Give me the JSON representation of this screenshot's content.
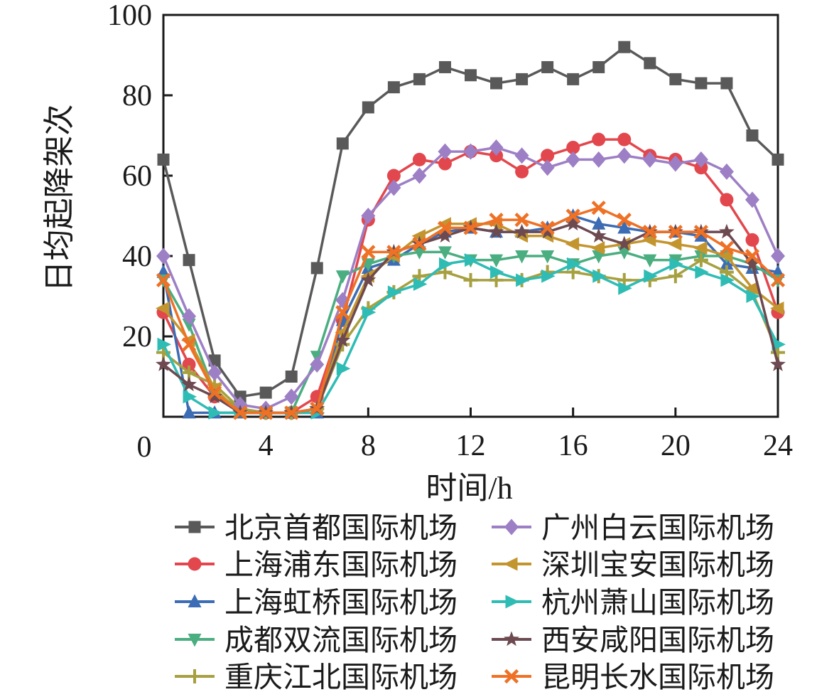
{
  "figure": {
    "background": "#ffffff",
    "axis_color": "#1a1a1a",
    "origin_label": "0"
  },
  "chart_data": {
    "type": "line",
    "title": "",
    "xlabel": "时间/h",
    "ylabel": "日均起降架次",
    "xlim": [
      0,
      24
    ],
    "ylim": [
      0,
      100
    ],
    "x_ticks": [
      0,
      4,
      8,
      12,
      16,
      20,
      24
    ],
    "y_ticks": [
      0,
      20,
      40,
      60,
      80,
      100
    ],
    "grid": false,
    "legend_position": "bottom",
    "legend_columns": 2,
    "x": [
      0,
      1,
      2,
      3,
      4,
      5,
      6,
      7,
      8,
      9,
      10,
      11,
      12,
      13,
      14,
      15,
      16,
      17,
      18,
      19,
      20,
      21,
      22,
      23,
      24
    ],
    "series": [
      {
        "id": "beijing-capital",
        "name": "北京首都国际机场",
        "color": "#595959",
        "marker": "square",
        "values": [
          64,
          39,
          14,
          5,
          6,
          10,
          37,
          68,
          77,
          82,
          84,
          87,
          85,
          83,
          84,
          87,
          84,
          87,
          92,
          88,
          84,
          83,
          83,
          70,
          64
        ]
      },
      {
        "id": "shanghai-pudong",
        "name": "上海浦东国际机场",
        "color": "#e2474d",
        "marker": "circle",
        "values": [
          26,
          13,
          5,
          2,
          1,
          1,
          5,
          24,
          49,
          60,
          64,
          63,
          66,
          65,
          61,
          65,
          67,
          69,
          69,
          65,
          64,
          62,
          54,
          44,
          26
        ]
      },
      {
        "id": "shanghai-hongqiao",
        "name": "上海虹桥国际机场",
        "color": "#3c6cb4",
        "marker": "triangle-up",
        "values": [
          36,
          1,
          1,
          1,
          1,
          1,
          1,
          24,
          37,
          39,
          43,
          46,
          47,
          46,
          46,
          47,
          50,
          48,
          47,
          46,
          46,
          45,
          38,
          37,
          36
        ]
      },
      {
        "id": "chengdu-shuangliu",
        "name": "成都双流国际机场",
        "color": "#4aae80",
        "marker": "triangle-down",
        "values": [
          34,
          23,
          6,
          2,
          1,
          1,
          15,
          35,
          38,
          40,
          41,
          41,
          39,
          39,
          40,
          40,
          38,
          40,
          41,
          39,
          39,
          40,
          40,
          38,
          34
        ]
      },
      {
        "id": "chongqing-jiangbei",
        "name": "重庆江北国际机场",
        "color": "#a6a040",
        "marker": "plus",
        "values": [
          16,
          11,
          8,
          2,
          1,
          1,
          2,
          18,
          27,
          31,
          35,
          36,
          34,
          34,
          34,
          36,
          36,
          35,
          34,
          34,
          35,
          39,
          36,
          31,
          16
        ]
      },
      {
        "id": "guangzhou-baiyun",
        "name": "广州白云国际机场",
        "color": "#9d7fc5",
        "marker": "diamond",
        "values": [
          40,
          25,
          11,
          3,
          2,
          5,
          13,
          29,
          50,
          57,
          60,
          66,
          66,
          67,
          65,
          62,
          64,
          64,
          65,
          64,
          63,
          64,
          61,
          54,
          40
        ]
      },
      {
        "id": "shenzhen-baoan",
        "name": "深圳宝安国际机场",
        "color": "#c3952f",
        "marker": "triangle-left",
        "values": [
          27,
          19,
          7,
          1,
          1,
          1,
          2,
          21,
          35,
          40,
          45,
          48,
          48,
          48,
          45,
          45,
          43,
          42,
          43,
          44,
          43,
          42,
          40,
          32,
          27
        ]
      },
      {
        "id": "hangzhou-xiaoshan",
        "name": "杭州萧山国际机场",
        "color": "#2fbcb4",
        "marker": "triangle-right",
        "values": [
          18,
          5,
          1,
          1,
          1,
          1,
          1,
          12,
          26,
          31,
          33,
          38,
          39,
          36,
          34,
          35,
          38,
          35,
          32,
          35,
          38,
          36,
          34,
          30,
          18
        ]
      },
      {
        "id": "xian-xianyang",
        "name": "西安咸阳国际机场",
        "color": "#6d4950",
        "marker": "star",
        "values": [
          13,
          8,
          5,
          1,
          1,
          1,
          2,
          19,
          34,
          41,
          43,
          45,
          47,
          46,
          46,
          46,
          48,
          45,
          43,
          46,
          46,
          46,
          46,
          38,
          13
        ]
      },
      {
        "id": "kunming-changshui",
        "name": "昆明长水国际机场",
        "color": "#ee7125",
        "marker": "x",
        "values": [
          34,
          18,
          6,
          1,
          1,
          1,
          2,
          26,
          41,
          41,
          43,
          47,
          47,
          49,
          49,
          47,
          50,
          52,
          49,
          46,
          46,
          46,
          42,
          40,
          34
        ]
      }
    ]
  }
}
